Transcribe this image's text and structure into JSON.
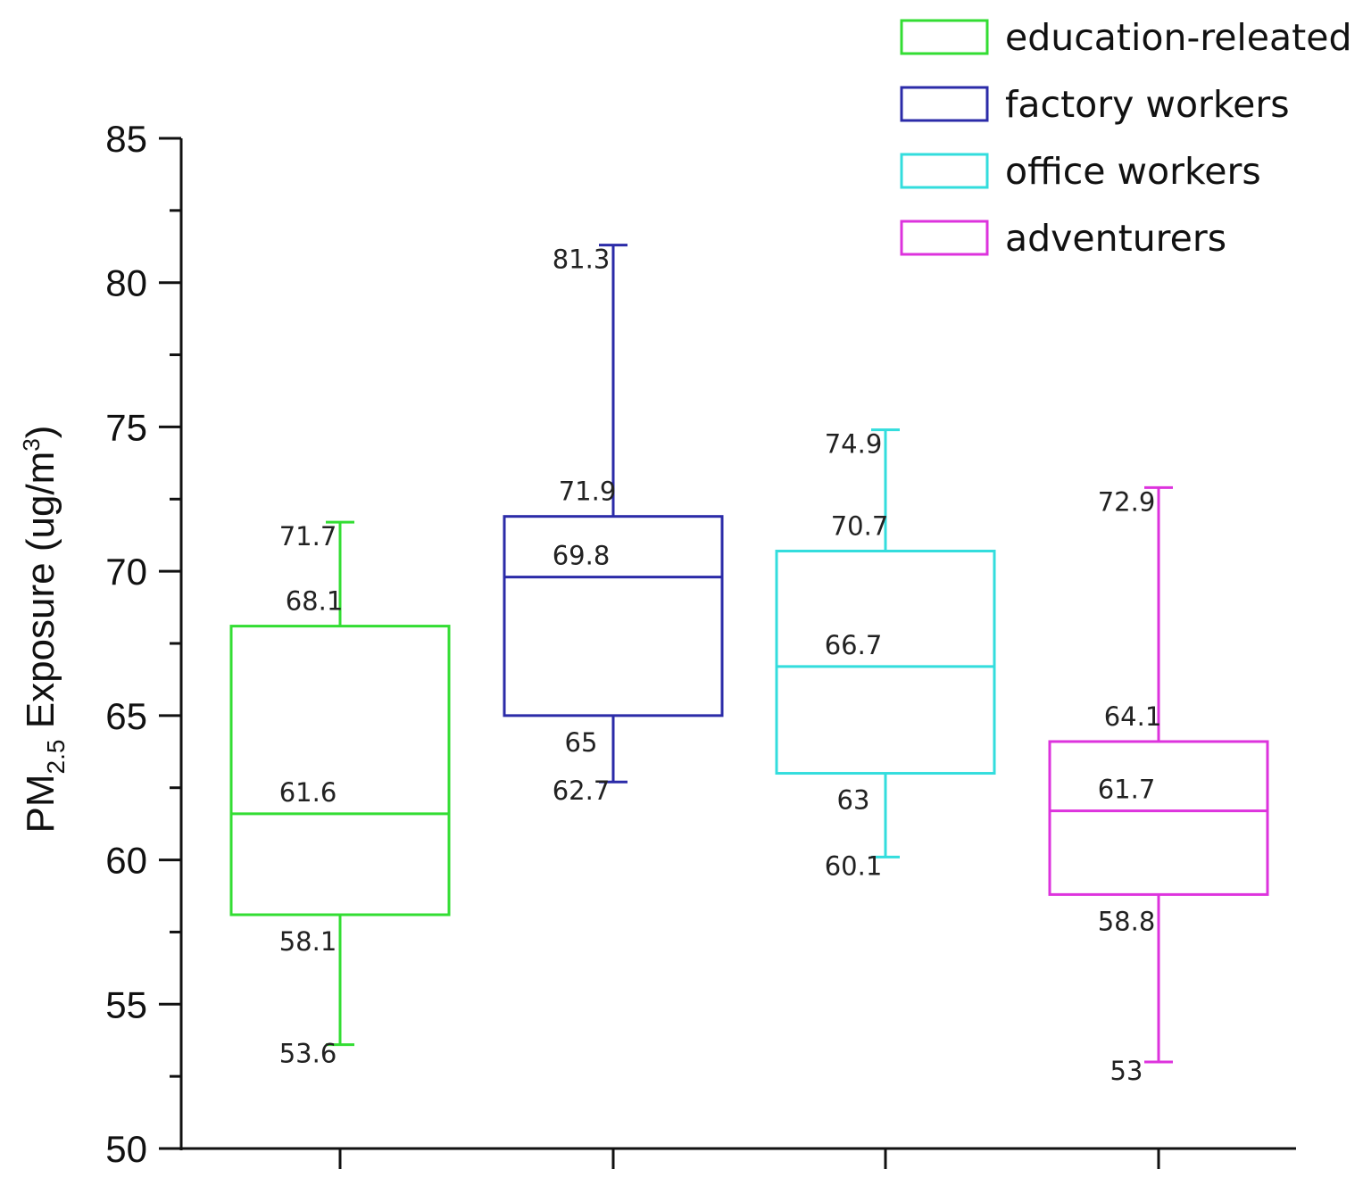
{
  "chart_data": {
    "type": "box",
    "title": "",
    "xlabel": "",
    "ylabel": {
      "prefix": "PM",
      "subscript": "2.5",
      "middle": " Exposure (ug/m",
      "superscript": "3",
      "suffix": ")"
    },
    "ylim": [
      50,
      85
    ],
    "yticks": [
      50,
      55,
      60,
      65,
      70,
      75,
      80,
      85
    ],
    "legend_position": "top-right",
    "series": [
      {
        "name": "education-releated",
        "color": "#33dd33",
        "whisker_low": 53.6,
        "q1": 58.1,
        "median": 61.6,
        "q3": 68.1,
        "whisker_high": 71.7,
        "labels": {
          "whisker_high": "71.7",
          "q3": "68.1",
          "median": "61.6",
          "q1": "58.1",
          "whisker_low": "53.6"
        }
      },
      {
        "name": "factory workers",
        "color": "#2b2ba8",
        "whisker_low": 62.7,
        "q1": 65,
        "median": 69.8,
        "q3": 71.9,
        "whisker_high": 81.3,
        "labels": {
          "whisker_high": "81.3",
          "q3": "71.9",
          "median": "69.8",
          "q1": "65",
          "whisker_low": "62.7"
        }
      },
      {
        "name": "office workers",
        "color": "#33dddd",
        "whisker_low": 60.1,
        "q1": 63,
        "median": 66.7,
        "q3": 70.7,
        "whisker_high": 74.9,
        "labels": {
          "whisker_high": "74.9",
          "q3": "70.7",
          "median": "66.7",
          "q1": "63",
          "whisker_low": "60.1"
        }
      },
      {
        "name": "adventurers",
        "color": "#dd33dd",
        "whisker_low": 53,
        "q1": 58.8,
        "median": 61.7,
        "q3": 64.1,
        "whisker_high": 72.9,
        "labels": {
          "whisker_high": "72.9",
          "q3": "64.1",
          "median": "61.7",
          "q1": "58.8",
          "whisker_low": "53"
        }
      }
    ]
  }
}
